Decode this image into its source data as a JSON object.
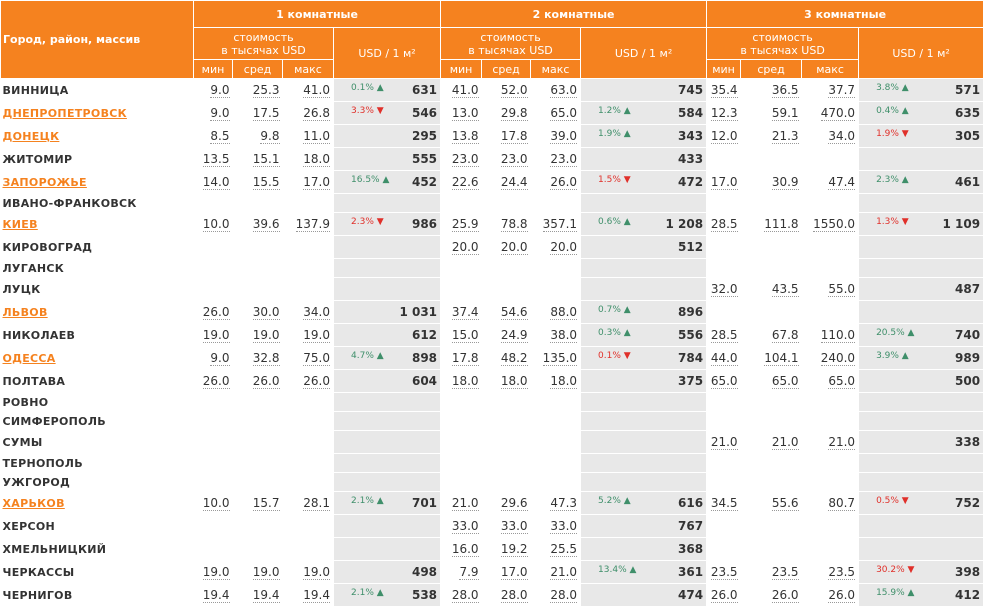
{
  "header": {
    "corner": "Город, район, массив",
    "groups": [
      "1 комнатные",
      "2 комнатные",
      "3 комнатные"
    ],
    "cost": [
      "стоимость",
      "в тысячах USD"
    ],
    "per_m2": "USD / 1 м²",
    "sub": [
      "мин",
      "сред",
      "макс"
    ]
  },
  "rows": [
    {
      "city": "ВИННИЦА",
      "link": false,
      "groups": [
        [
          "9.0",
          "25.3",
          "41.0",
          {
            "text": "0.1%",
            "dir": "up"
          },
          "631"
        ],
        [
          "41.0",
          "52.0",
          "63.0",
          null,
          "745"
        ],
        [
          "35.4",
          "36.5",
          "37.7",
          {
            "text": "3.8%",
            "dir": "up"
          },
          "571"
        ]
      ]
    },
    {
      "city": "ДНЕПРОПЕТРОВСК",
      "link": true,
      "groups": [
        [
          "9.0",
          "17.5",
          "26.8",
          {
            "text": "3.3%",
            "dir": "down"
          },
          "546"
        ],
        [
          "13.0",
          "29.8",
          "65.0",
          {
            "text": "1.2%",
            "dir": "up"
          },
          "584"
        ],
        [
          "12.3",
          "59.1",
          "470.0",
          {
            "text": "0.4%",
            "dir": "up"
          },
          "635"
        ]
      ]
    },
    {
      "city": "ДОНЕЦК",
      "link": true,
      "groups": [
        [
          "8.5",
          "9.8",
          "11.0",
          null,
          "295"
        ],
        [
          "13.8",
          "17.8",
          "39.0",
          {
            "text": "1.9%",
            "dir": "up"
          },
          "343"
        ],
        [
          "12.0",
          "21.3",
          "34.0",
          {
            "text": "1.9%",
            "dir": "down"
          },
          "305"
        ]
      ]
    },
    {
      "city": "ЖИТОМИР",
      "link": false,
      "groups": [
        [
          "13.5",
          "15.1",
          "18.0",
          null,
          "555"
        ],
        [
          "23.0",
          "23.0",
          "23.0",
          null,
          "433"
        ],
        null
      ]
    },
    {
      "city": "ЗАПОРОЖЬЕ",
      "link": true,
      "groups": [
        [
          "14.0",
          "15.5",
          "17.0",
          {
            "text": "16.5%",
            "dir": "up"
          },
          "452"
        ],
        [
          "22.6",
          "24.4",
          "26.0",
          {
            "text": "1.5%",
            "dir": "down"
          },
          "472"
        ],
        [
          "17.0",
          "30.9",
          "47.4",
          {
            "text": "2.3%",
            "dir": "up"
          },
          "461"
        ]
      ]
    },
    {
      "city": "ИВАНО-ФРАНКОВСК",
      "link": false,
      "groups": [
        null,
        null,
        null
      ]
    },
    {
      "city": "КИЕВ",
      "link": true,
      "groups": [
        [
          "10.0",
          "39.6",
          "137.9",
          {
            "text": "2.3%",
            "dir": "down"
          },
          "986"
        ],
        [
          "25.9",
          "78.8",
          "357.1",
          {
            "text": "0.6%",
            "dir": "up"
          },
          "1 208"
        ],
        [
          "28.5",
          "111.8",
          "1550.0",
          {
            "text": "1.3%",
            "dir": "down"
          },
          "1 109"
        ]
      ]
    },
    {
      "city": "КИРОВОГРАД",
      "link": false,
      "groups": [
        null,
        [
          "20.0",
          "20.0",
          "20.0",
          null,
          "512"
        ],
        null
      ]
    },
    {
      "city": "ЛУГАНСК",
      "link": false,
      "groups": [
        null,
        null,
        null
      ]
    },
    {
      "city": "ЛУЦК",
      "link": false,
      "groups": [
        null,
        null,
        [
          "32.0",
          "43.5",
          "55.0",
          null,
          "487"
        ]
      ]
    },
    {
      "city": "ЛЬВОВ",
      "link": true,
      "groups": [
        [
          "26.0",
          "30.0",
          "34.0",
          null,
          "1 031"
        ],
        [
          "37.4",
          "54.6",
          "88.0",
          {
            "text": "0.7%",
            "dir": "up"
          },
          "896"
        ],
        null
      ]
    },
    {
      "city": "НИКОЛАЕВ",
      "link": false,
      "groups": [
        [
          "19.0",
          "19.0",
          "19.0",
          null,
          "612"
        ],
        [
          "15.0",
          "24.9",
          "38.0",
          {
            "text": "0.3%",
            "dir": "up"
          },
          "556"
        ],
        [
          "28.5",
          "67.8",
          "110.0",
          {
            "text": "20.5%",
            "dir": "up"
          },
          "740"
        ]
      ]
    },
    {
      "city": "ОДЕССА",
      "link": true,
      "groups": [
        [
          "9.0",
          "32.8",
          "75.0",
          {
            "text": "4.7%",
            "dir": "up"
          },
          "898"
        ],
        [
          "17.8",
          "48.2",
          "135.0",
          {
            "text": "0.1%",
            "dir": "down"
          },
          "784"
        ],
        [
          "44.0",
          "104.1",
          "240.0",
          {
            "text": "3.9%",
            "dir": "up"
          },
          "989"
        ]
      ]
    },
    {
      "city": "ПОЛТАВА",
      "link": false,
      "groups": [
        [
          "26.0",
          "26.0",
          "26.0",
          null,
          "604"
        ],
        [
          "18.0",
          "18.0",
          "18.0",
          null,
          "375"
        ],
        [
          "65.0",
          "65.0",
          "65.0",
          null,
          "500"
        ]
      ]
    },
    {
      "city": "РОВНО",
      "link": false,
      "groups": [
        null,
        null,
        null
      ]
    },
    {
      "city": "СИМФЕРОПОЛЬ",
      "link": false,
      "groups": [
        null,
        null,
        null
      ]
    },
    {
      "city": "СУМЫ",
      "link": false,
      "groups": [
        null,
        null,
        [
          "21.0",
          "21.0",
          "21.0",
          null,
          "338"
        ]
      ]
    },
    {
      "city": "ТЕРНОПОЛЬ",
      "link": false,
      "groups": [
        null,
        null,
        null
      ]
    },
    {
      "city": "УЖГОРОД",
      "link": false,
      "groups": [
        null,
        null,
        null
      ]
    },
    {
      "city": "ХАРЬКОВ",
      "link": true,
      "groups": [
        [
          "10.0",
          "15.7",
          "28.1",
          {
            "text": "2.1%",
            "dir": "up"
          },
          "701"
        ],
        [
          "21.0",
          "29.6",
          "47.3",
          {
            "text": "5.2%",
            "dir": "up"
          },
          "616"
        ],
        [
          "34.5",
          "55.6",
          "80.7",
          {
            "text": "0.5%",
            "dir": "down"
          },
          "752"
        ]
      ]
    },
    {
      "city": "ХЕРСОН",
      "link": false,
      "groups": [
        null,
        [
          "33.0",
          "33.0",
          "33.0",
          null,
          "767"
        ],
        null
      ]
    },
    {
      "city": "ХМЕЛЬНИЦКИЙ",
      "link": false,
      "groups": [
        null,
        [
          "16.0",
          "19.2",
          "25.5",
          null,
          "368"
        ],
        null
      ]
    },
    {
      "city": "ЧЕРКАССЫ",
      "link": false,
      "groups": [
        [
          "19.0",
          "19.0",
          "19.0",
          null,
          "498"
        ],
        [
          "7.9",
          "17.0",
          "21.0",
          {
            "text": "13.4%",
            "dir": "up"
          },
          "361"
        ],
        [
          "23.5",
          "23.5",
          "23.5",
          {
            "text": "30.2%",
            "dir": "down"
          },
          "398"
        ]
      ]
    },
    {
      "city": "ЧЕРНИГОВ",
      "link": false,
      "groups": [
        [
          "19.4",
          "19.4",
          "19.4",
          {
            "text": "2.1%",
            "dir": "up"
          },
          "538"
        ],
        [
          "28.0",
          "28.0",
          "28.0",
          null,
          "474"
        ],
        [
          "26.0",
          "26.0",
          "26.0",
          {
            "text": "15.9%",
            "dir": "up"
          },
          "412"
        ]
      ]
    }
  ]
}
